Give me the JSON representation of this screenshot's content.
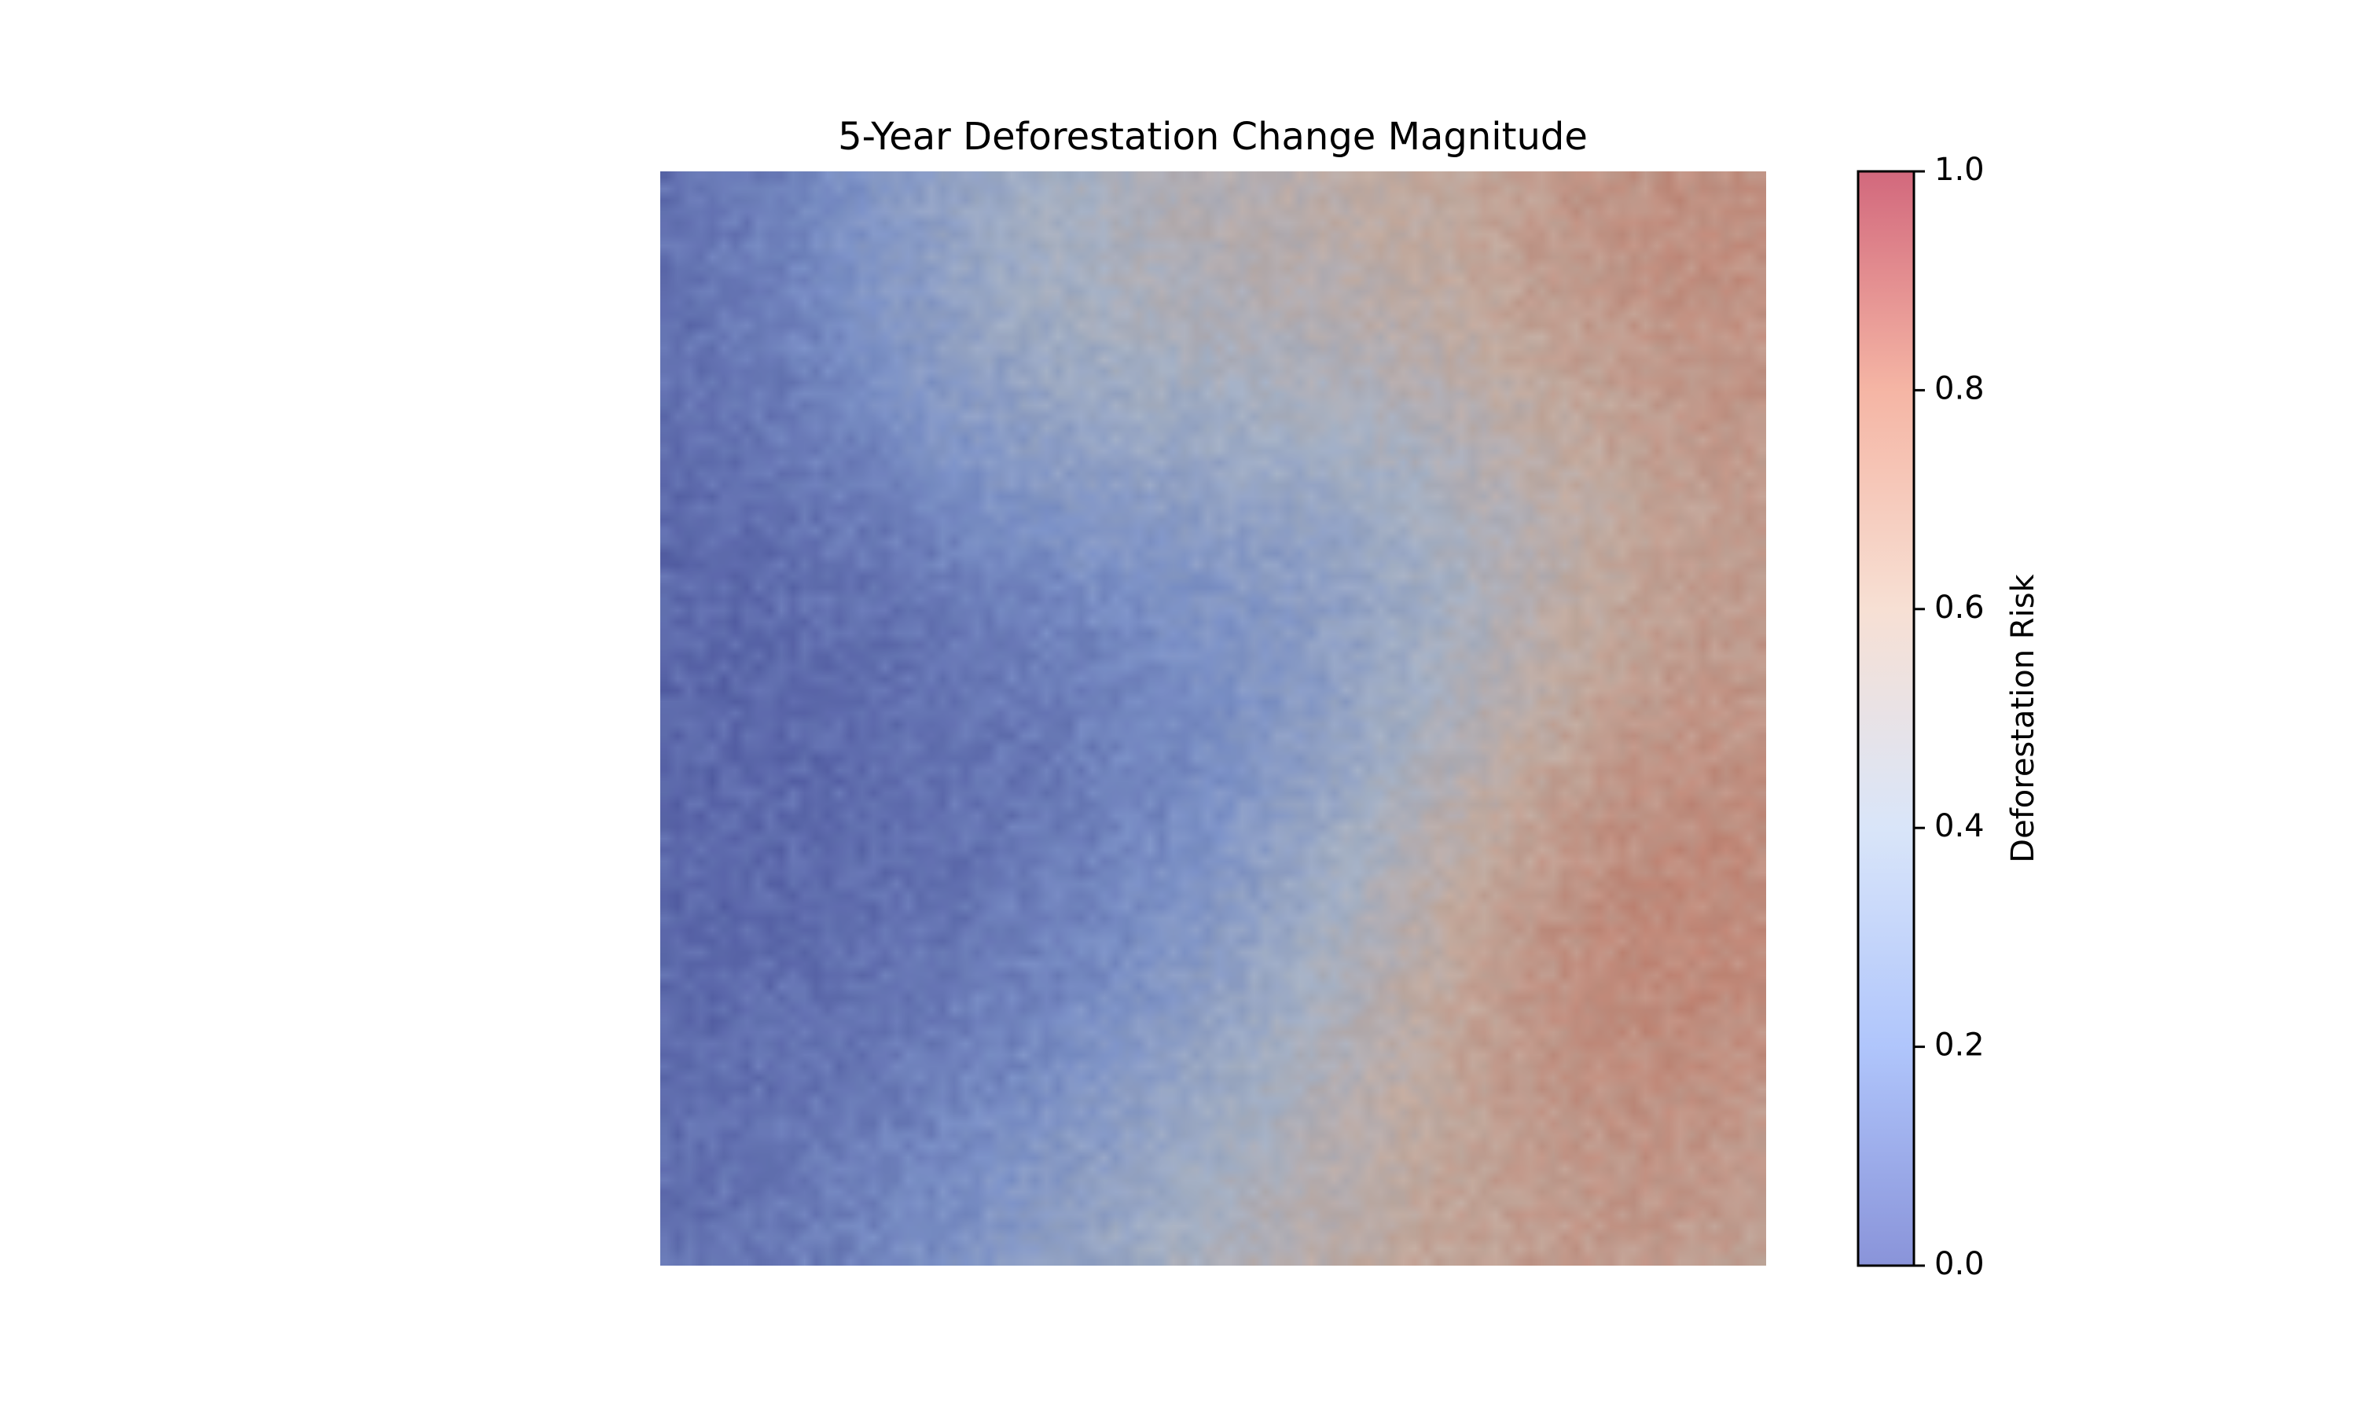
{
  "chart_data": {
    "type": "heatmap",
    "title": "5-Year Deforestation Change Magnitude",
    "colormap": "coolwarm",
    "overlay_alpha": 0.6,
    "axes_visible": false,
    "colorbar": {
      "label": "Deforestation Risk",
      "range": [
        0.0,
        1.0
      ],
      "ticks": [
        {
          "value": 0.0,
          "label": "0.0"
        },
        {
          "value": 0.2,
          "label": "0.2"
        },
        {
          "value": 0.4,
          "label": "0.4"
        },
        {
          "value": 0.6,
          "label": "0.6"
        },
        {
          "value": 0.8,
          "label": "0.8"
        },
        {
          "value": 1.0,
          "label": "1.0"
        }
      ],
      "stops": [
        "#3b4cc0",
        "#7b9ff9",
        "#c0d4f5",
        "#f2cbb7",
        "#ee8468",
        "#b40426"
      ]
    },
    "risk_field": {
      "base": 0.05,
      "hotspots": [
        {
          "x": 0.95,
          "y": 0.05,
          "value": 1.0,
          "spread": 0.22
        },
        {
          "x": 0.88,
          "y": 0.66,
          "value": 1.0,
          "spread": 0.16
        },
        {
          "x": 0.75,
          "y": 0.98,
          "value": 0.95,
          "spread": 0.28
        },
        {
          "x": 0.55,
          "y": 0.1,
          "value": 0.65,
          "spread": 0.2
        },
        {
          "x": 0.9,
          "y": 0.45,
          "value": 0.8,
          "spread": 0.18
        }
      ],
      "lows": [
        {
          "x": 0.37,
          "y": 0.68,
          "value": 0.0,
          "spread": 0.25
        },
        {
          "x": 0.63,
          "y": 0.4,
          "value": 0.1,
          "spread": 0.15
        }
      ]
    }
  }
}
